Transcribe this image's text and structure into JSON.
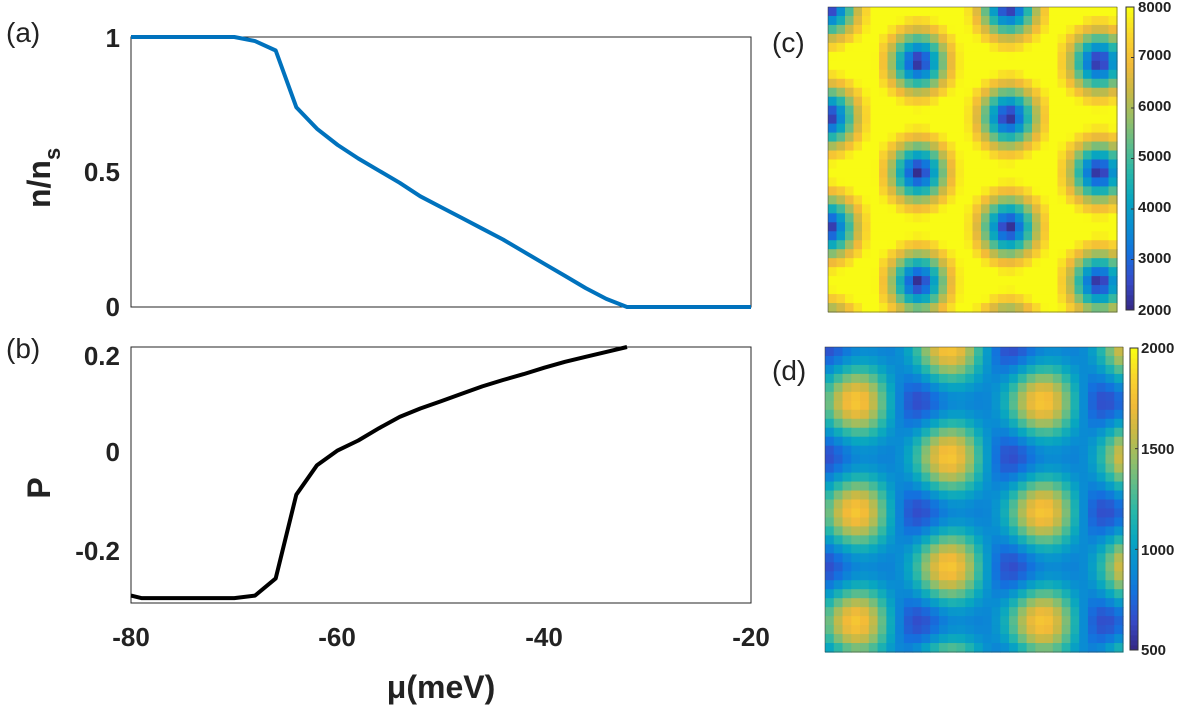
{
  "panel_labels": [
    "(a)",
    "(b)",
    "(c)",
    "(d)"
  ],
  "chart_data": [
    {
      "id": "a",
      "type": "line",
      "color": "#0072BD",
      "x": [
        -80,
        -78,
        -76,
        -74,
        -72,
        -70,
        -68,
        -66,
        -64,
        -62,
        -60,
        -58,
        -56,
        -54,
        -52,
        -50,
        -48,
        -46,
        -44,
        -42,
        -40,
        -38,
        -36,
        -34,
        -32,
        -30,
        -28,
        -26,
        -24,
        -22,
        -20
      ],
      "y": [
        1.0,
        1.0,
        1.0,
        1.0,
        1.0,
        1.0,
        0.985,
        0.95,
        0.74,
        0.66,
        0.6,
        0.55,
        0.505,
        0.46,
        0.41,
        0.37,
        0.33,
        0.29,
        0.25,
        0.205,
        0.16,
        0.115,
        0.07,
        0.03,
        0.0,
        0.0,
        0.0,
        0.0,
        0.0,
        0.0,
        0.0
      ],
      "ylabel_main": "n/n",
      "ylabel_sub": "s",
      "xlim": [
        -80,
        -20
      ],
      "ylim": [
        0,
        1
      ],
      "yticks": [
        "0",
        "0.5",
        "1"
      ]
    },
    {
      "id": "b",
      "type": "line",
      "color": "#000000",
      "x": [
        -80,
        -79,
        -78,
        -76,
        -74,
        -72,
        -70,
        -68,
        -66,
        -64,
        -62,
        -60,
        -58,
        -56,
        -54,
        -52,
        -50,
        -48,
        -46,
        -44,
        -42,
        -40,
        -38,
        -36,
        -34,
        -32
      ],
      "y": [
        -0.295,
        -0.3,
        -0.3,
        -0.3,
        -0.3,
        -0.3,
        -0.3,
        -0.295,
        -0.26,
        -0.09,
        -0.03,
        0.0,
        0.02,
        0.045,
        0.068,
        0.085,
        0.1,
        0.115,
        0.13,
        0.143,
        0.155,
        0.168,
        0.18,
        0.19,
        0.2,
        0.21
      ],
      "ylabel": "P",
      "xlabel": "μ(meV)",
      "xlim": [
        -80,
        -20
      ],
      "ylim": [
        -0.31,
        0.21
      ],
      "yticks": [
        "-0.2",
        "0",
        "0.2"
      ],
      "xticks": [
        "-80",
        "-60",
        "-40",
        "-20"
      ]
    },
    {
      "id": "c",
      "type": "heatmap",
      "pattern": "triangular moiré lattice",
      "colormap": "parula",
      "clim": [
        2000,
        8000
      ],
      "colorbar_ticks": [
        "2000",
        "3000",
        "4000",
        "5000",
        "6000",
        "7000",
        "8000"
      ]
    },
    {
      "id": "d",
      "type": "heatmap",
      "pattern": "triangular moiré lattice",
      "colormap": "parula",
      "clim": [
        500,
        2000
      ],
      "colorbar_ticks": [
        "500",
        "1000",
        "1500",
        "2000"
      ]
    }
  ]
}
